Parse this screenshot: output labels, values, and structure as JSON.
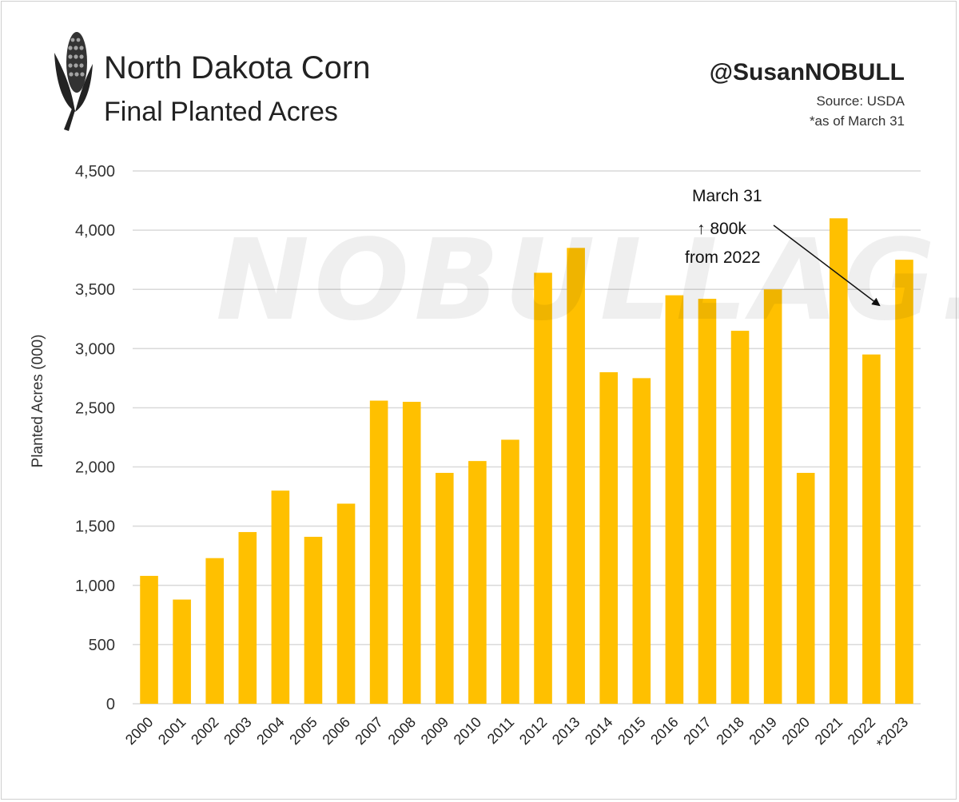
{
  "header": {
    "title": "North Dakota Corn",
    "subtitle": "Final Planted Acres",
    "handle": "@SusanNOBULL",
    "source": "Source: USDA",
    "note": "*as of March 31"
  },
  "watermark": "NOBULLAG.COM",
  "annotation": {
    "line1": "March 31",
    "line2": "↑ 800k",
    "line3": "from 2022"
  },
  "colors": {
    "bar": "#FFC000",
    "grid": "#d9d9d9"
  },
  "icons": {
    "logo": "corn-cob-icon"
  },
  "chart_data": {
    "type": "bar",
    "title": "North Dakota Corn Final Planted Acres",
    "xlabel": "",
    "ylabel": "Planted Acres (000)",
    "ylim": [
      0,
      4500
    ],
    "yticks": [
      0,
      500,
      1000,
      1500,
      2000,
      2500,
      3000,
      3500,
      4000,
      4500
    ],
    "ytick_labels": [
      "0",
      "500",
      "1,000",
      "1,500",
      "2,000",
      "2,500",
      "3,000",
      "3,500",
      "4,000",
      "4,500"
    ],
    "grid": true,
    "legend": "none",
    "categories": [
      "2000",
      "2001",
      "2002",
      "2003",
      "2004",
      "2005",
      "2006",
      "2007",
      "2008",
      "2009",
      "2010",
      "2011",
      "2012",
      "2013",
      "2014",
      "2015",
      "2016",
      "2017",
      "2018",
      "2019",
      "2020",
      "2021",
      "2022",
      "*2023"
    ],
    "values": [
      1080,
      880,
      1230,
      1450,
      1800,
      1410,
      1690,
      2560,
      2550,
      1950,
      2050,
      2230,
      3640,
      3850,
      2800,
      2750,
      3450,
      3420,
      3150,
      3500,
      1950,
      4100,
      2950,
      3750
    ]
  }
}
